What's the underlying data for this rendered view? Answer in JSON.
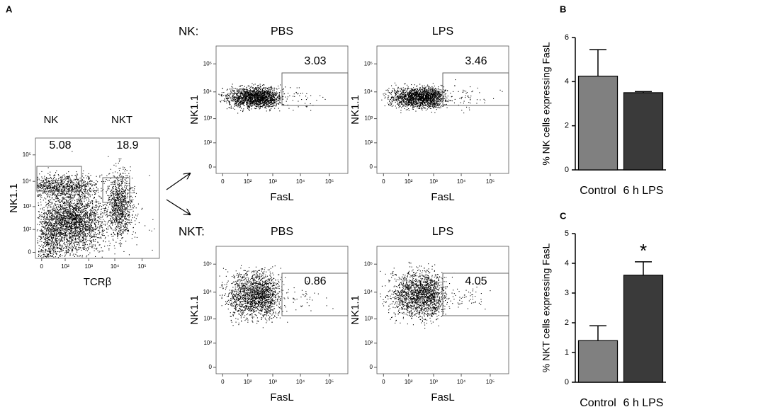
{
  "panel_labels": [
    "A",
    "B",
    "C"
  ],
  "flow": {
    "ticks": [
      "0",
      "10²",
      "10³",
      "10⁴",
      "10⁵"
    ],
    "main": {
      "y_label": "NK1.1",
      "x_label": "TCRβ",
      "gates": [
        {
          "name": "NK",
          "value": "5.08"
        },
        {
          "name": "NKT",
          "value": "18.9"
        }
      ]
    },
    "groups": [
      {
        "label": "NK:",
        "y_label": "NK1.1",
        "x_label": "FasL",
        "plots": [
          {
            "title": "PBS",
            "gate": "3.03"
          },
          {
            "title": "LPS",
            "gate": "3.46"
          }
        ]
      },
      {
        "label": "NKT:",
        "y_label": "NK1.1",
        "x_label": "FasL",
        "plots": [
          {
            "title": "PBS",
            "gate": "0.86"
          },
          {
            "title": "LPS",
            "gate": "4.05"
          }
        ]
      }
    ]
  },
  "chart_data": [
    {
      "type": "bar",
      "y_label": "% NK cells expressing FasL",
      "categories": [
        "Control",
        "6 h LPS"
      ],
      "values": [
        4.25,
        3.5
      ],
      "errors": [
        1.2,
        0.05
      ],
      "colors": [
        "#808080",
        "#3a3a3a"
      ],
      "ylim": [
        0,
        6
      ],
      "yticks": [
        0,
        2,
        4,
        6
      ]
    },
    {
      "type": "bar",
      "y_label": "% NKT cells expressing FasL",
      "categories": [
        "Control",
        "6 h LPS"
      ],
      "values": [
        1.4,
        3.6
      ],
      "errors": [
        0.5,
        0.45
      ],
      "colors": [
        "#808080",
        "#3a3a3a"
      ],
      "ylim": [
        0,
        5
      ],
      "yticks": [
        0,
        1,
        2,
        3,
        4,
        5
      ],
      "annotation": "*"
    }
  ]
}
